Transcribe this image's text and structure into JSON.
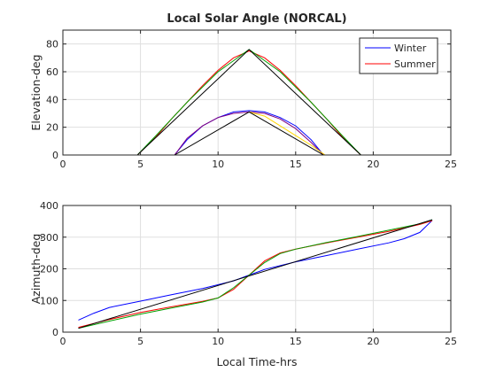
{
  "chart_data": [
    {
      "type": "line",
      "title": "Local Solar Angle (NORCAL)",
      "xlabel": "",
      "ylabel": "Elevation-deg",
      "xlim": [
        0,
        25
      ],
      "ylim": [
        0,
        90
      ],
      "xticks": [
        0,
        5,
        10,
        15,
        20,
        25
      ],
      "yticks": [
        0,
        20,
        40,
        60,
        80
      ],
      "grid": true,
      "legend": {
        "placement": "top-right",
        "entries": [
          {
            "label": "Winter",
            "color": "#0000ff"
          },
          {
            "label": "Summer",
            "color": "#ff0000"
          }
        ]
      },
      "series": [
        {
          "color": "#ff0000",
          "points": [
            [
              4.8,
              0
            ],
            [
              6,
              13
            ],
            [
              7,
              26
            ],
            [
              8,
              38
            ],
            [
              9,
              50
            ],
            [
              10,
              61
            ],
            [
              11,
              70
            ],
            [
              12,
              75
            ],
            [
              13,
              70
            ],
            [
              14,
              61
            ],
            [
              15,
              50
            ],
            [
              16,
              38
            ],
            [
              17,
              26
            ],
            [
              18,
              13
            ],
            [
              19.2,
              0
            ]
          ]
        },
        {
          "color": "#00a000",
          "points": [
            [
              4.8,
              0
            ],
            [
              6,
              14
            ],
            [
              8,
              38
            ],
            [
              10,
              60
            ],
            [
              11,
              68
            ],
            [
              12,
              76
            ],
            [
              13,
              68
            ],
            [
              14,
              60
            ],
            [
              16,
              38
            ],
            [
              18,
              14
            ],
            [
              19.2,
              0
            ]
          ]
        },
        {
          "color": "#000000",
          "points": [
            [
              4.8,
              0
            ],
            [
              12,
              76
            ],
            [
              19.2,
              0
            ]
          ]
        },
        {
          "color": "#0000ff",
          "points": [
            [
              7.2,
              0
            ],
            [
              8,
              11
            ],
            [
              9,
              21
            ],
            [
              10,
              27
            ],
            [
              11,
              31
            ],
            [
              12,
              32
            ],
            [
              13,
              31
            ],
            [
              14,
              27
            ],
            [
              15,
              21
            ],
            [
              16,
              11
            ],
            [
              16.8,
              0
            ]
          ]
        },
        {
          "color": "#800080",
          "points": [
            [
              7.2,
              0
            ],
            [
              8,
              12
            ],
            [
              9,
              21
            ],
            [
              10,
              27
            ],
            [
              11,
              30
            ],
            [
              12,
              31
            ],
            [
              13,
              30
            ],
            [
              14,
              26
            ],
            [
              15,
              19
            ],
            [
              16,
              9
            ],
            [
              16.8,
              0
            ]
          ]
        },
        {
          "color": "#ffd700",
          "points": [
            [
              12,
              31
            ],
            [
              13,
              28
            ],
            [
              14,
              21
            ],
            [
              15,
              14
            ],
            [
              16,
              7
            ],
            [
              16.9,
              0
            ]
          ]
        },
        {
          "color": "#000000",
          "points": [
            [
              7.2,
              0
            ],
            [
              12,
              31
            ],
            [
              16.8,
              0
            ]
          ]
        }
      ]
    },
    {
      "type": "line",
      "title": "",
      "xlabel": "Local Time-hrs",
      "ylabel": "Azimuth-deg",
      "xlim": [
        0,
        25
      ],
      "ylim": [
        0,
        400
      ],
      "xticks": [
        0,
        5,
        10,
        15,
        20,
        25
      ],
      "yticks": [
        0,
        100,
        200,
        300,
        400
      ],
      "grid": true,
      "series": [
        {
          "color": "#0000ff",
          "points": [
            [
              1,
              38
            ],
            [
              2,
              60
            ],
            [
              3,
              78
            ],
            [
              5,
              98
            ],
            [
              7,
              118
            ],
            [
              9,
              138
            ],
            [
              11,
              162
            ],
            [
              12,
              180
            ],
            [
              13,
              198
            ],
            [
              15,
              222
            ],
            [
              17,
              242
            ],
            [
              19,
              262
            ],
            [
              21,
              282
            ],
            [
              22,
              295
            ],
            [
              23,
              315
            ],
            [
              23.8,
              353
            ]
          ]
        },
        {
          "color": "#ff0000",
          "points": [
            [
              1,
              15
            ],
            [
              3,
              40
            ],
            [
              5,
              62
            ],
            [
              7,
              80
            ],
            [
              9,
              97
            ],
            [
              10,
              108
            ],
            [
              11,
              135
            ],
            [
              12,
              180
            ],
            [
              13,
              225
            ],
            [
              14,
              250
            ],
            [
              15,
              262
            ],
            [
              17,
              282
            ],
            [
              19,
              300
            ],
            [
              21,
              318
            ],
            [
              23,
              340
            ],
            [
              23.8,
              352
            ]
          ]
        },
        {
          "color": "#00a000",
          "points": [
            [
              1,
              12
            ],
            [
              3,
              35
            ],
            [
              5,
              57
            ],
            [
              7,
              76
            ],
            [
              9,
              95
            ],
            [
              10,
              108
            ],
            [
              11,
              140
            ],
            [
              12,
              180
            ],
            [
              13,
              220
            ],
            [
              14,
              248
            ],
            [
              15,
              262
            ],
            [
              17,
              283
            ],
            [
              19,
              302
            ],
            [
              21,
              322
            ],
            [
              23,
              342
            ],
            [
              23.8,
              355
            ]
          ]
        },
        {
          "color": "#000000",
          "points": [
            [
              1,
              12
            ],
            [
              23.8,
              355
            ]
          ]
        }
      ]
    }
  ]
}
